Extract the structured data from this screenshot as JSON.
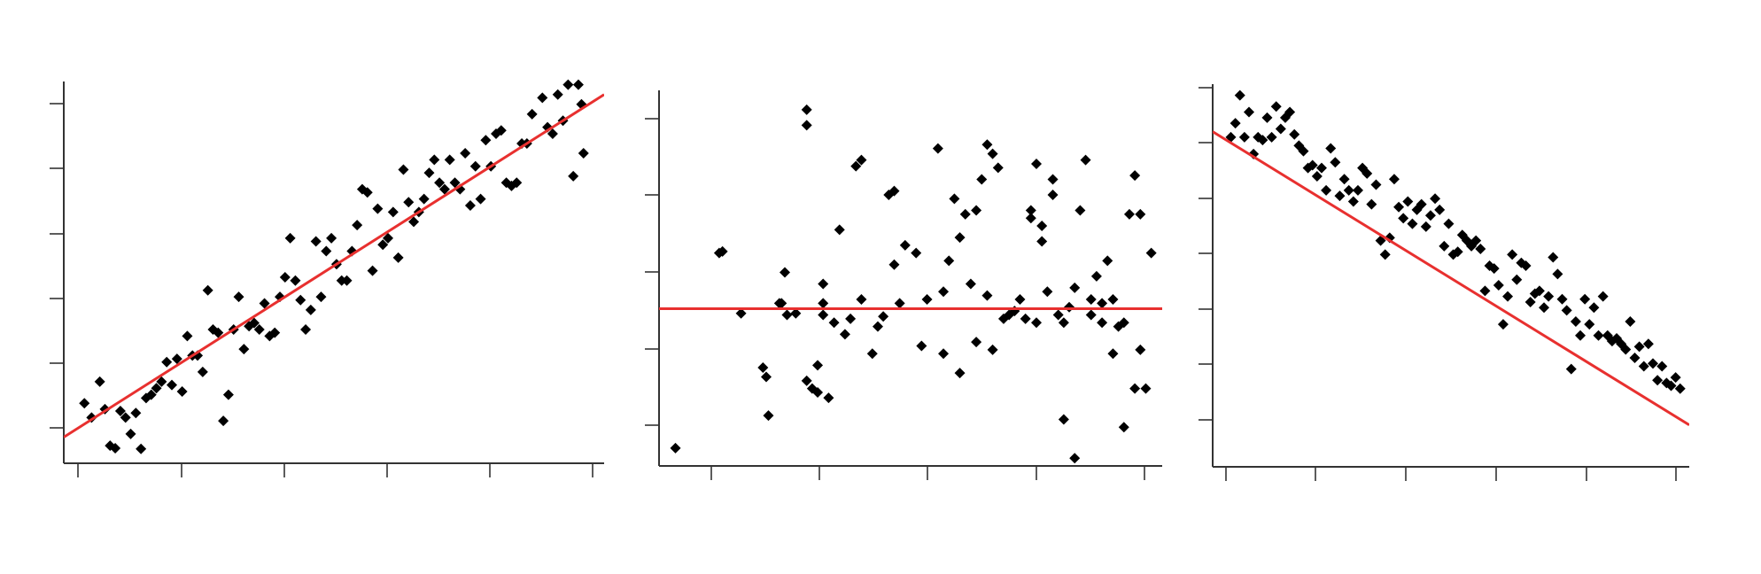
{
  "colors": {
    "points": "#000000",
    "fit": "#e8302f",
    "axis": "#333333",
    "background": "#ffffff"
  },
  "chart_data": [
    {
      "type": "scatter",
      "title": "",
      "xlabel": "",
      "ylabel": "",
      "xlim": [
        -0.15,
        5.1
      ],
      "ylim": [
        -0.55,
        5.3
      ],
      "grid": false,
      "legend": "none",
      "fit_line": {
        "slope": 1.0,
        "intercept": 0.0
      },
      "points": [
        [
          0.05,
          0.37
        ],
        [
          0.12,
          0.15
        ],
        [
          0.2,
          0.7
        ],
        [
          0.25,
          0.28
        ],
        [
          0.3,
          -0.28
        ],
        [
          0.35,
          -0.32
        ],
        [
          0.4,
          0.25
        ],
        [
          0.45,
          0.15
        ],
        [
          0.5,
          -0.1
        ],
        [
          0.55,
          0.22
        ],
        [
          0.6,
          -0.33
        ],
        [
          0.65,
          0.45
        ],
        [
          0.7,
          0.5
        ],
        [
          0.75,
          0.6
        ],
        [
          0.8,
          0.7
        ],
        [
          0.85,
          1.0
        ],
        [
          0.9,
          0.65
        ],
        [
          0.95,
          1.05
        ],
        [
          1.0,
          0.55
        ],
        [
          1.05,
          1.4
        ],
        [
          1.1,
          1.1
        ],
        [
          1.15,
          1.1
        ],
        [
          1.2,
          0.85
        ],
        [
          1.25,
          2.1
        ],
        [
          1.3,
          1.5
        ],
        [
          1.35,
          1.45
        ],
        [
          1.4,
          0.1
        ],
        [
          1.45,
          0.5
        ],
        [
          1.5,
          1.5
        ],
        [
          1.55,
          2.0
        ],
        [
          1.6,
          1.2
        ],
        [
          1.65,
          1.55
        ],
        [
          1.7,
          1.6
        ],
        [
          1.75,
          1.5
        ],
        [
          1.8,
          1.9
        ],
        [
          1.85,
          1.4
        ],
        [
          1.9,
          1.45
        ],
        [
          1.95,
          2.0
        ],
        [
          2.0,
          2.3
        ],
        [
          2.05,
          2.9
        ],
        [
          2.1,
          2.25
        ],
        [
          2.15,
          1.95
        ],
        [
          2.2,
          1.5
        ],
        [
          2.25,
          1.8
        ],
        [
          2.3,
          2.85
        ],
        [
          2.35,
          2.0
        ],
        [
          2.4,
          2.7
        ],
        [
          2.45,
          2.9
        ],
        [
          2.5,
          2.5
        ],
        [
          2.55,
          2.25
        ],
        [
          2.6,
          2.25
        ],
        [
          2.65,
          2.7
        ],
        [
          2.7,
          3.1
        ],
        [
          2.75,
          3.65
        ],
        [
          2.8,
          3.6
        ],
        [
          2.85,
          2.4
        ],
        [
          2.9,
          3.35
        ],
        [
          2.95,
          2.8
        ],
        [
          3.0,
          2.9
        ],
        [
          3.05,
          3.3
        ],
        [
          3.1,
          2.6
        ],
        [
          3.15,
          3.95
        ],
        [
          3.2,
          3.45
        ],
        [
          3.25,
          3.15
        ],
        [
          3.3,
          3.3
        ],
        [
          3.35,
          3.5
        ],
        [
          3.4,
          3.9
        ],
        [
          3.45,
          4.1
        ],
        [
          3.5,
          3.75
        ],
        [
          3.55,
          3.65
        ],
        [
          3.6,
          4.1
        ],
        [
          3.65,
          3.75
        ],
        [
          3.7,
          3.65
        ],
        [
          3.75,
          4.2
        ],
        [
          3.8,
          3.4
        ],
        [
          3.85,
          4.0
        ],
        [
          3.9,
          3.5
        ],
        [
          3.95,
          4.4
        ],
        [
          4.0,
          4.0
        ],
        [
          4.05,
          4.5
        ],
        [
          4.1,
          4.55
        ],
        [
          4.15,
          3.75
        ],
        [
          4.2,
          3.7
        ],
        [
          4.25,
          3.75
        ],
        [
          4.3,
          4.35
        ],
        [
          4.35,
          4.35
        ],
        [
          4.4,
          4.8
        ],
        [
          4.5,
          5.05
        ],
        [
          4.55,
          4.6
        ],
        [
          4.6,
          4.5
        ],
        [
          4.65,
          5.1
        ],
        [
          4.7,
          4.7
        ],
        [
          4.75,
          5.25
        ],
        [
          4.8,
          3.85
        ],
        [
          4.85,
          5.25
        ],
        [
          4.88,
          4.95
        ],
        [
          4.9,
          4.2
        ]
      ]
    },
    {
      "type": "scatter",
      "title": "",
      "xlabel": "",
      "ylabel": "",
      "xlim": [
        -0.45,
        4.15
      ],
      "ylim": [
        0.35,
        5.2
      ],
      "grid": false,
      "legend": "none",
      "fit_line": {
        "slope": 0.0,
        "intercept": 2.38
      },
      "points": [
        [
          -0.3,
          0.58
        ],
        [
          0.1,
          3.1
        ],
        [
          0.13,
          3.12
        ],
        [
          0.3,
          2.32
        ],
        [
          0.5,
          1.62
        ],
        [
          0.53,
          1.5
        ],
        [
          0.55,
          1.0
        ],
        [
          0.65,
          2.45
        ],
        [
          0.67,
          2.45
        ],
        [
          0.7,
          2.85
        ],
        [
          0.72,
          2.3
        ],
        [
          0.8,
          2.32
        ],
        [
          0.9,
          4.95
        ],
        [
          0.9,
          4.75
        ],
        [
          0.9,
          1.45
        ],
        [
          0.95,
          1.35
        ],
        [
          1.0,
          1.3
        ],
        [
          1.0,
          1.65
        ],
        [
          1.05,
          2.3
        ],
        [
          1.05,
          2.7
        ],
        [
          1.05,
          2.45
        ],
        [
          1.1,
          1.23
        ],
        [
          1.15,
          2.2
        ],
        [
          1.2,
          3.4
        ],
        [
          1.25,
          2.05
        ],
        [
          1.3,
          2.25
        ],
        [
          1.35,
          4.22
        ],
        [
          1.4,
          4.3
        ],
        [
          1.4,
          2.5
        ],
        [
          1.5,
          1.8
        ],
        [
          1.55,
          2.15
        ],
        [
          1.6,
          2.28
        ],
        [
          1.65,
          3.85
        ],
        [
          1.7,
          3.9
        ],
        [
          1.7,
          2.95
        ],
        [
          1.75,
          2.45
        ],
        [
          1.8,
          3.2
        ],
        [
          1.9,
          3.1
        ],
        [
          1.95,
          1.9
        ],
        [
          2.0,
          2.5
        ],
        [
          2.1,
          4.45
        ],
        [
          2.15,
          1.8
        ],
        [
          2.15,
          2.6
        ],
        [
          2.2,
          3.0
        ],
        [
          2.25,
          3.8
        ],
        [
          2.3,
          3.3
        ],
        [
          2.35,
          3.6
        ],
        [
          2.4,
          2.7
        ],
        [
          2.45,
          3.65
        ],
        [
          2.5,
          4.05
        ],
        [
          2.55,
          4.5
        ],
        [
          2.6,
          4.38
        ],
        [
          2.65,
          4.2
        ],
        [
          2.7,
          2.25
        ],
        [
          2.75,
          2.3
        ],
        [
          2.8,
          2.35
        ],
        [
          2.85,
          2.5
        ],
        [
          2.9,
          2.25
        ],
        [
          2.95,
          3.55
        ],
        [
          3.0,
          4.25
        ],
        [
          3.05,
          3.45
        ],
        [
          3.1,
          2.6
        ],
        [
          3.15,
          3.85
        ],
        [
          3.2,
          2.3
        ],
        [
          3.25,
          2.2
        ],
        [
          3.3,
          2.4
        ],
        [
          3.35,
          2.65
        ],
        [
          3.4,
          3.65
        ],
        [
          3.45,
          4.3
        ],
        [
          3.5,
          2.3
        ],
        [
          3.55,
          2.8
        ],
        [
          3.6,
          2.45
        ],
        [
          3.65,
          3.0
        ],
        [
          3.7,
          2.5
        ],
        [
          3.75,
          2.15
        ],
        [
          3.8,
          2.2
        ],
        [
          3.85,
          3.6
        ],
        [
          3.9,
          4.1
        ],
        [
          3.95,
          3.6
        ],
        [
          4.0,
          1.35
        ],
        [
          4.05,
          3.1
        ],
        [
          2.95,
          3.65
        ],
        [
          3.05,
          3.25
        ],
        [
          3.15,
          4.05
        ],
        [
          2.45,
          1.95
        ],
        [
          2.55,
          2.55
        ],
        [
          2.6,
          1.85
        ],
        [
          2.3,
          1.55
        ],
        [
          3.25,
          0.95
        ],
        [
          3.35,
          0.45
        ],
        [
          3.5,
          2.5
        ],
        [
          3.6,
          2.2
        ],
        [
          3.7,
          1.8
        ],
        [
          3.8,
          0.85
        ],
        [
          3.9,
          1.35
        ],
        [
          3.95,
          1.85
        ],
        [
          3.0,
          2.2
        ]
      ]
    },
    {
      "type": "scatter",
      "title": "",
      "xlabel": "",
      "ylabel": "",
      "xlim": [
        -0.15,
        5.1
      ],
      "ylim": [
        -0.85,
        6.0
      ],
      "grid": false,
      "legend": "none",
      "fit_line": {
        "slope": -1.0,
        "intercept": 5.0
      },
      "points": [
        [
          0.05,
          5.05
        ],
        [
          0.1,
          5.3
        ],
        [
          0.15,
          5.8
        ],
        [
          0.2,
          5.05
        ],
        [
          0.25,
          5.5
        ],
        [
          0.3,
          4.75
        ],
        [
          0.35,
          5.05
        ],
        [
          0.4,
          5.0
        ],
        [
          0.45,
          5.4
        ],
        [
          0.5,
          5.05
        ],
        [
          0.55,
          5.6
        ],
        [
          0.6,
          5.2
        ],
        [
          0.65,
          5.4
        ],
        [
          0.7,
          5.5
        ],
        [
          0.75,
          5.1
        ],
        [
          0.8,
          4.9
        ],
        [
          0.85,
          4.8
        ],
        [
          0.9,
          4.5
        ],
        [
          0.95,
          4.55
        ],
        [
          1.0,
          4.35
        ],
        [
          1.05,
          4.5
        ],
        [
          1.1,
          4.1
        ],
        [
          1.15,
          4.85
        ],
        [
          1.2,
          4.6
        ],
        [
          1.25,
          4.0
        ],
        [
          1.3,
          4.3
        ],
        [
          1.35,
          4.1
        ],
        [
          1.4,
          3.9
        ],
        [
          1.45,
          4.1
        ],
        [
          1.5,
          4.5
        ],
        [
          1.55,
          4.4
        ],
        [
          1.6,
          3.85
        ],
        [
          1.65,
          4.2
        ],
        [
          1.7,
          3.2
        ],
        [
          1.75,
          2.95
        ],
        [
          1.8,
          3.25
        ],
        [
          1.85,
          4.3
        ],
        [
          1.9,
          3.8
        ],
        [
          1.95,
          3.6
        ],
        [
          2.0,
          3.9
        ],
        [
          2.05,
          3.5
        ],
        [
          2.1,
          3.75
        ],
        [
          2.15,
          3.85
        ],
        [
          2.2,
          3.45
        ],
        [
          2.25,
          3.65
        ],
        [
          2.3,
          3.95
        ],
        [
          2.35,
          3.75
        ],
        [
          2.4,
          3.1
        ],
        [
          2.45,
          3.5
        ],
        [
          2.5,
          2.95
        ],
        [
          2.55,
          3.0
        ],
        [
          2.6,
          3.3
        ],
        [
          2.65,
          3.2
        ],
        [
          2.7,
          3.1
        ],
        [
          2.75,
          3.2
        ],
        [
          2.8,
          3.05
        ],
        [
          2.85,
          2.3
        ],
        [
          2.9,
          2.75
        ],
        [
          2.95,
          2.7
        ],
        [
          3.0,
          2.4
        ],
        [
          3.05,
          1.7
        ],
        [
          3.1,
          2.2
        ],
        [
          3.15,
          2.95
        ],
        [
          3.2,
          2.5
        ],
        [
          3.25,
          2.8
        ],
        [
          3.3,
          2.75
        ],
        [
          3.35,
          2.1
        ],
        [
          3.4,
          2.25
        ],
        [
          3.45,
          2.3
        ],
        [
          3.5,
          2.0
        ],
        [
          3.55,
          2.2
        ],
        [
          3.6,
          2.9
        ],
        [
          3.65,
          2.6
        ],
        [
          3.7,
          2.15
        ],
        [
          3.75,
          1.95
        ],
        [
          3.8,
          0.9
        ],
        [
          3.85,
          1.75
        ],
        [
          3.9,
          1.5
        ],
        [
          3.95,
          2.15
        ],
        [
          4.0,
          1.7
        ],
        [
          4.05,
          2.0
        ],
        [
          4.1,
          1.5
        ],
        [
          4.15,
          2.2
        ],
        [
          4.2,
          1.5
        ],
        [
          4.25,
          1.4
        ],
        [
          4.3,
          1.45
        ],
        [
          4.35,
          1.35
        ],
        [
          4.4,
          1.25
        ],
        [
          4.45,
          1.75
        ],
        [
          4.5,
          1.1
        ],
        [
          4.55,
          1.3
        ],
        [
          4.6,
          0.95
        ],
        [
          4.65,
          1.35
        ],
        [
          4.7,
          1.0
        ],
        [
          4.75,
          0.7
        ],
        [
          4.8,
          0.95
        ],
        [
          4.85,
          0.65
        ],
        [
          4.9,
          0.6
        ],
        [
          4.95,
          0.75
        ],
        [
          5.0,
          0.55
        ]
      ]
    }
  ]
}
